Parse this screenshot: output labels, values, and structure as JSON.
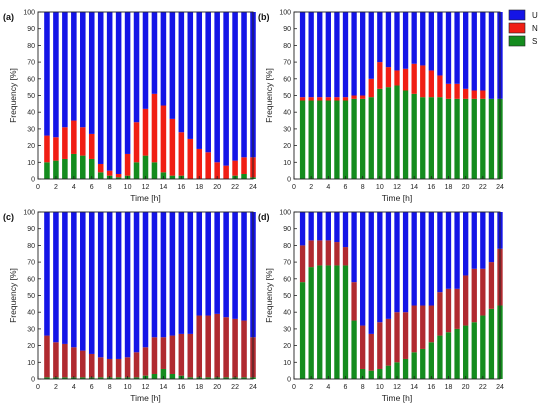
{
  "chart_data": [
    {
      "panel_label": "(a)",
      "type": "bar",
      "stacked": true,
      "xlabel": "Time [h]",
      "ylabel": "Frequency [%]",
      "xlim": [
        0,
        24
      ],
      "ylim": [
        0,
        100
      ],
      "xticks": [
        0,
        2,
        4,
        6,
        8,
        10,
        12,
        14,
        16,
        18,
        20,
        22,
        24
      ],
      "yticks": [
        0,
        10,
        20,
        30,
        40,
        50,
        60,
        70,
        80,
        90,
        100
      ],
      "x": [
        1,
        2,
        3,
        4,
        5,
        6,
        7,
        8,
        9,
        10,
        11,
        12,
        13,
        14,
        15,
        16,
        17,
        18,
        19,
        20,
        21,
        22,
        23,
        24
      ],
      "series": [
        {
          "name": "S",
          "values": [
            10,
            11,
            12,
            15,
            14,
            12,
            4,
            2,
            1,
            2,
            10,
            14,
            10,
            4,
            2,
            2,
            0,
            0,
            0,
            0,
            0,
            2,
            3,
            1
          ]
        },
        {
          "name": "N",
          "values": [
            16,
            14,
            19,
            20,
            17,
            15,
            5,
            3,
            2,
            13,
            24,
            28,
            41,
            40,
            34,
            26,
            24,
            18,
            16,
            10,
            8,
            9,
            10,
            12
          ]
        },
        {
          "name": "U",
          "values": [
            74,
            75,
            69,
            65,
            69,
            73,
            91,
            95,
            97,
            85,
            66,
            58,
            49,
            56,
            64,
            72,
            76,
            82,
            84,
            90,
            92,
            89,
            87,
            87
          ]
        }
      ]
    },
    {
      "panel_label": "(b)",
      "type": "bar",
      "stacked": true,
      "xlabel": "Time [h]",
      "ylabel": "Frequency [%]",
      "xlim": [
        0,
        24
      ],
      "ylim": [
        0,
        100
      ],
      "xticks": [
        0,
        2,
        4,
        6,
        8,
        10,
        12,
        14,
        16,
        18,
        20,
        22,
        24
      ],
      "yticks": [
        0,
        10,
        20,
        30,
        40,
        50,
        60,
        70,
        80,
        90,
        100
      ],
      "x": [
        1,
        2,
        3,
        4,
        5,
        6,
        7,
        8,
        9,
        10,
        11,
        12,
        13,
        14,
        15,
        16,
        17,
        18,
        19,
        20,
        21,
        22,
        23,
        24
      ],
      "series": [
        {
          "name": "S",
          "values": [
            47,
            47,
            47,
            47,
            47,
            47,
            48,
            48,
            49,
            54,
            55,
            56,
            53,
            51,
            49,
            49,
            49,
            48,
            48,
            48,
            48,
            48,
            48,
            48
          ]
        },
        {
          "name": "N",
          "values": [
            2,
            2,
            2,
            2,
            2,
            2,
            2,
            2,
            11,
            16,
            12,
            9,
            13,
            18,
            19,
            16,
            13,
            9,
            9,
            6,
            5,
            5,
            0,
            0
          ]
        },
        {
          "name": "U",
          "values": [
            51,
            51,
            51,
            51,
            51,
            51,
            50,
            50,
            40,
            30,
            33,
            35,
            34,
            31,
            32,
            35,
            38,
            43,
            43,
            46,
            47,
            47,
            52,
            52
          ]
        }
      ]
    },
    {
      "panel_label": "(c)",
      "type": "bar",
      "stacked": true,
      "xlabel": "Time [h]",
      "ylabel": "Frequency [%]",
      "xlim": [
        0,
        24
      ],
      "ylim": [
        0,
        100
      ],
      "xticks": [
        0,
        2,
        4,
        6,
        8,
        10,
        12,
        14,
        16,
        18,
        20,
        22,
        24
      ],
      "yticks": [
        0,
        10,
        20,
        30,
        40,
        50,
        60,
        70,
        80,
        90,
        100
      ],
      "x": [
        1,
        2,
        3,
        4,
        5,
        6,
        7,
        8,
        9,
        10,
        11,
        12,
        13,
        14,
        15,
        16,
        17,
        18,
        19,
        20,
        21,
        22,
        23,
        24
      ],
      "series": [
        {
          "name": "S",
          "values": [
            1,
            1,
            1,
            1,
            1,
            1,
            1,
            1,
            1,
            1,
            1,
            2,
            3,
            6,
            3,
            2,
            1,
            1,
            1,
            1,
            1,
            1,
            1,
            1
          ]
        },
        {
          "name": "N",
          "values": [
            25,
            21,
            20,
            18,
            16,
            14,
            12,
            11,
            11,
            12,
            15,
            17,
            22,
            19,
            23,
            25,
            26,
            37,
            37,
            38,
            36,
            35,
            34,
            24
          ]
        },
        {
          "name": "U",
          "values": [
            74,
            78,
            79,
            81,
            83,
            85,
            87,
            88,
            88,
            87,
            84,
            81,
            75,
            75,
            74,
            73,
            73,
            62,
            62,
            61,
            63,
            64,
            65,
            75
          ]
        }
      ]
    },
    {
      "panel_label": "(d)",
      "type": "bar",
      "stacked": true,
      "xlabel": "Time [h]",
      "ylabel": "Frequency [%]",
      "xlim": [
        0,
        24
      ],
      "ylim": [
        0,
        100
      ],
      "xticks": [
        0,
        2,
        4,
        6,
        8,
        10,
        12,
        14,
        16,
        18,
        20,
        22,
        24
      ],
      "yticks": [
        0,
        10,
        20,
        30,
        40,
        50,
        60,
        70,
        80,
        90,
        100
      ],
      "x": [
        1,
        2,
        3,
        4,
        5,
        6,
        7,
        8,
        9,
        10,
        11,
        12,
        13,
        14,
        15,
        16,
        17,
        18,
        19,
        20,
        21,
        22,
        23,
        24
      ],
      "series": [
        {
          "name": "S",
          "values": [
            58,
            67,
            68,
            68,
            68,
            68,
            35,
            6,
            5,
            6,
            8,
            10,
            12,
            16,
            18,
            22,
            26,
            28,
            30,
            32,
            34,
            38,
            42,
            44
          ]
        },
        {
          "name": "N",
          "values": [
            22,
            16,
            15,
            15,
            14,
            11,
            23,
            26,
            22,
            28,
            28,
            30,
            28,
            28,
            26,
            22,
            26,
            26,
            24,
            30,
            32,
            28,
            28,
            34
          ]
        },
        {
          "name": "U",
          "values": [
            20,
            17,
            17,
            17,
            18,
            21,
            42,
            68,
            73,
            66,
            64,
            60,
            60,
            56,
            56,
            56,
            48,
            46,
            46,
            38,
            34,
            34,
            30,
            22
          ]
        }
      ]
    }
  ],
  "legend": {
    "placement": "top-right",
    "items": [
      {
        "label": "U",
        "color": "#1414e6"
      },
      {
        "label": "N",
        "color": "#f01e14"
      },
      {
        "label": "S",
        "color": "#148c1e"
      }
    ]
  },
  "colors": {
    "S": "#148c1e",
    "N": "#f01e14",
    "U": "#1414e6",
    "c_N": "#a83030",
    "d_N": "#a83030"
  },
  "panel_colors": [
    {
      "S": "#148c1e",
      "N": "#f01e14",
      "U": "#1414e6"
    },
    {
      "S": "#148c1e",
      "N": "#f01e14",
      "U": "#1414e6"
    },
    {
      "S": "#148c1e",
      "N": "#b02a30",
      "U": "#1414e6"
    },
    {
      "S": "#148c1e",
      "N": "#b02a30",
      "U": "#1414e6"
    }
  ]
}
